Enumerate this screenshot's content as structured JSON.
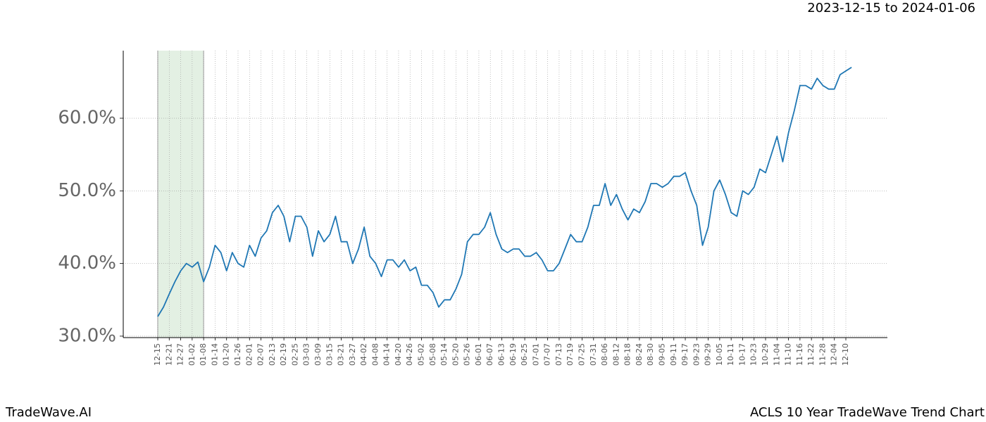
{
  "chart_data": {
    "type": "line",
    "header": "2023-12-15 to 2024-01-06",
    "footer_left": "TradeWave.AI",
    "footer_right": "ACLS 10 Year TradeWave Trend Chart",
    "color": "#1f77b4",
    "grid": true,
    "shade": {
      "from": "12-15",
      "to": "01-08",
      "color": "#e3f0e3"
    },
    "categories": [
      "12-15",
      null,
      "12-21",
      null,
      "12-27",
      null,
      "01-02",
      null,
      "01-08",
      null,
      "01-14",
      null,
      "01-20",
      null,
      "01-26",
      null,
      "02-01",
      null,
      "02-07",
      null,
      "02-13",
      null,
      "02-19",
      null,
      "02-25",
      null,
      "03-03",
      null,
      "03-09",
      null,
      "03-15",
      null,
      "03-21",
      null,
      "03-27",
      null,
      "04-02",
      null,
      "04-08",
      null,
      "04-14",
      null,
      "04-20",
      null,
      "04-26",
      null,
      "05-02",
      null,
      "05-08",
      null,
      "05-14",
      null,
      "05-20",
      null,
      "05-26",
      null,
      "06-01",
      null,
      "06-07",
      null,
      "06-13",
      null,
      "06-19",
      null,
      "06-25",
      null,
      "07-01",
      null,
      "07-07",
      null,
      "07-13",
      null,
      "07-19",
      null,
      "07-25",
      null,
      "07-31",
      null,
      "08-06",
      null,
      "08-12",
      null,
      "08-18",
      null,
      "08-24",
      null,
      "08-30",
      null,
      "09-05",
      null,
      "09-11",
      null,
      "09-17",
      null,
      "09-23",
      null,
      "09-29",
      null,
      "10-05",
      null,
      "10-11",
      null,
      "10-17",
      null,
      "10-23",
      null,
      "10-29",
      null,
      "11-04",
      null,
      "11-10",
      null,
      "11-16",
      null,
      "11-22",
      null,
      "11-28",
      null,
      "12-04",
      null,
      "12-10",
      null
    ],
    "values": [
      32.7,
      34,
      35.8,
      37.5,
      39,
      40,
      39.5,
      40.2,
      37.5,
      39.5,
      42.5,
      41.5,
      39,
      41.5,
      40,
      39.5,
      42.5,
      41,
      43.5,
      44.5,
      47,
      48,
      46.5,
      43,
      46.5,
      46.5,
      45,
      41,
      44.5,
      43,
      44,
      46.5,
      43,
      43,
      40,
      42,
      45,
      41,
      40,
      38.2,
      40.5,
      40.5,
      39.5,
      40.5,
      39,
      39.5,
      37,
      37,
      36,
      34,
      35,
      35,
      36.5,
      38.5,
      43,
      44,
      44,
      45,
      47,
      44,
      42,
      41.5,
      42,
      42,
      41,
      41,
      41.5,
      40.5,
      39,
      39,
      40,
      42,
      44,
      43,
      43,
      45,
      48,
      48,
      51,
      48,
      49.5,
      47.5,
      46,
      47.5,
      47,
      48.5,
      51,
      51,
      50.5,
      51,
      52,
      52,
      52.5,
      50,
      48,
      42.5,
      45,
      50,
      51.5,
      49.5,
      47,
      46.5,
      50,
      49.5,
      50.5,
      53,
      52.5,
      55,
      57.5,
      54,
      58,
      61,
      64.5,
      64.5,
      64,
      65.5,
      64.5,
      64,
      64,
      66,
      66.5,
      67
    ],
    "ylim": [
      29.8,
      69.3
    ],
    "yticks": [
      {
        "value": 30,
        "label": "30.0%"
      },
      {
        "value": 40,
        "label": "40.0%"
      },
      {
        "value": 50,
        "label": "50.0%"
      },
      {
        "value": 60,
        "label": "60.0%"
      }
    ]
  }
}
